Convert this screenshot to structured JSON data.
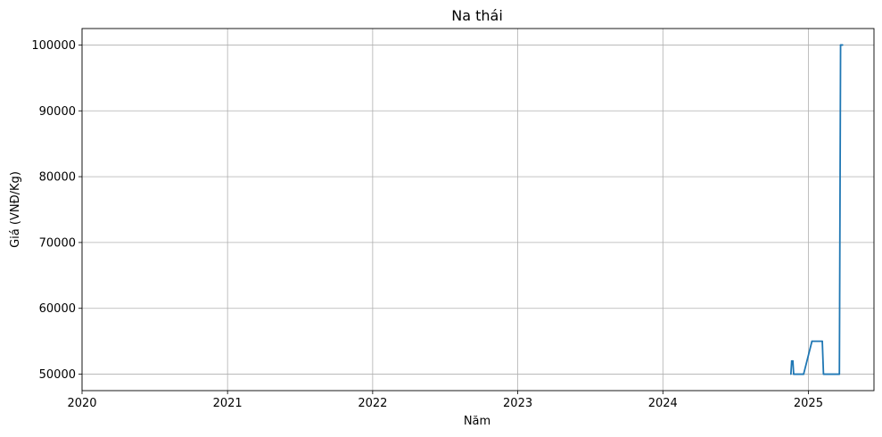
{
  "chart_data": {
    "type": "line",
    "title": "Na thái",
    "xlabel": "Năm",
    "ylabel": "Giá (VNĐ/Kg)",
    "x_ticks": [
      "2020",
      "2021",
      "2022",
      "2023",
      "2024",
      "2025"
    ],
    "y_ticks": [
      "50000",
      "60000",
      "70000",
      "80000",
      "90000",
      "100000"
    ],
    "xlim": [
      "2020-01-01",
      "2025-06-15"
    ],
    "ylim": [
      47500,
      102500
    ],
    "grid": true,
    "series": [
      {
        "color": "#1f77b4",
        "points": [
          {
            "x": "2024-11-18",
            "y": 50000
          },
          {
            "x": "2024-11-20",
            "y": 52000
          },
          {
            "x": "2024-11-23",
            "y": 52000
          },
          {
            "x": "2024-11-25",
            "y": 50000
          },
          {
            "x": "2024-12-20",
            "y": 50000
          },
          {
            "x": "2025-01-10",
            "y": 55000
          },
          {
            "x": "2025-02-05",
            "y": 55000
          },
          {
            "x": "2025-02-08",
            "y": 50000
          },
          {
            "x": "2025-03-20",
            "y": 50000
          },
          {
            "x": "2025-03-23",
            "y": 100000
          },
          {
            "x": "2025-03-28",
            "y": 100000
          }
        ]
      }
    ]
  }
}
